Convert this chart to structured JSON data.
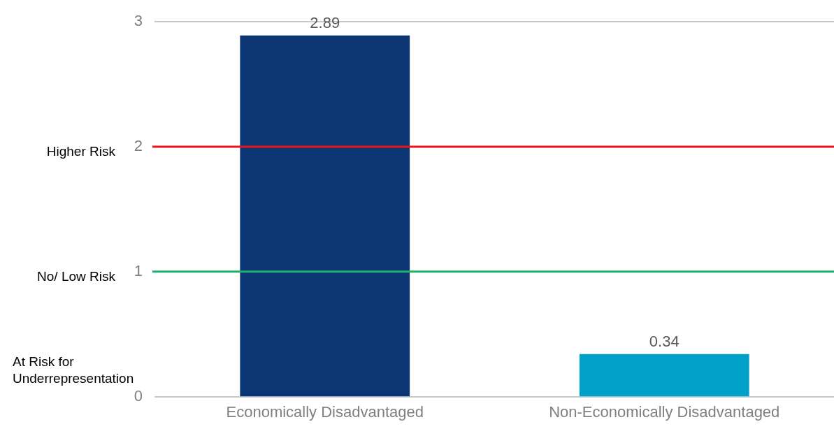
{
  "chart_data": {
    "type": "bar",
    "categories": [
      "Economically Disadvantaged",
      "Non-Economically Disadvantaged"
    ],
    "values": [
      2.89,
      0.34
    ],
    "colors": [
      "#0b3573",
      "#00a0c8"
    ],
    "ylim": [
      0,
      3
    ],
    "yticks": [
      0,
      1,
      2,
      3
    ],
    "grid": false,
    "legend": false,
    "data_labels": true,
    "ref_lines": [
      {
        "axis": "y",
        "value": 2,
        "label": "Higher Risk",
        "color": "#e8131b"
      },
      {
        "axis": "y",
        "value": 1,
        "label": "No/ Low Risk",
        "color": "#1fb06a"
      }
    ],
    "annotations": [
      "At Risk for Underrepresentation"
    ]
  }
}
